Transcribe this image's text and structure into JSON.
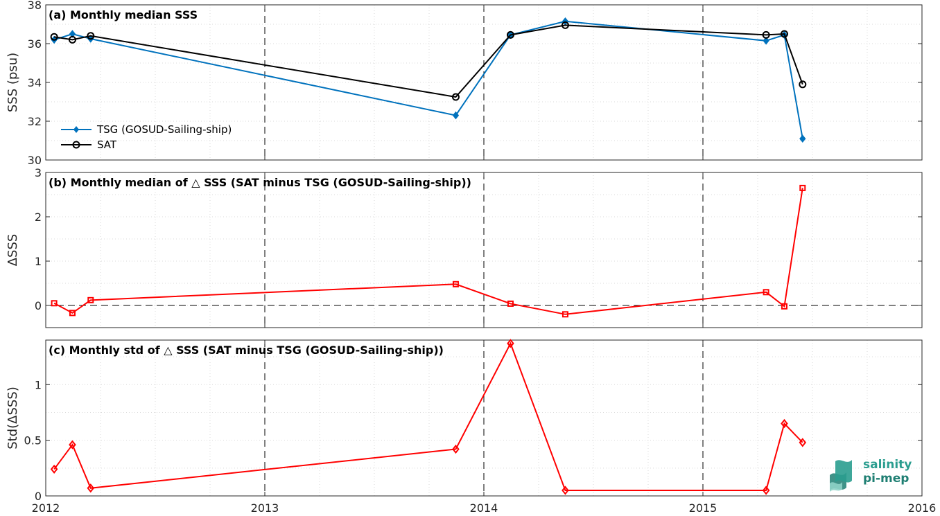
{
  "x_tick_labels": [
    "2012",
    "2013",
    "2014",
    "2015",
    "2016"
  ],
  "logo": {
    "line1": "salinity",
    "line2": "pi-mep",
    "color_text": "#2a9d8f",
    "color_dark": "#1f7f73"
  },
  "chart_data": [
    {
      "id": "a",
      "type": "line",
      "title": "(a) Monthly median SSS",
      "ylabel": "SSS (psu)",
      "xlim": [
        "2012-01-01",
        "2016-01-01"
      ],
      "ylim": [
        30,
        38
      ],
      "yticks": [
        30,
        32,
        34,
        36,
        38
      ],
      "grid": true,
      "legend_placement": "bottom-left",
      "series": [
        {
          "name": "TSG (GOSUD-Sailing-ship)",
          "color": "#0072BD",
          "marker": "filled-diamond",
          "x": [
            "2012-01-15",
            "2012-02-15",
            "2012-03-15",
            "2013-11-15",
            "2014-02-15",
            "2014-05-15",
            "2015-04-15",
            "2015-05-15",
            "2015-06-15"
          ],
          "y": [
            36.2,
            36.5,
            36.25,
            32.3,
            36.45,
            37.15,
            36.15,
            36.45,
            31.1
          ]
        },
        {
          "name": "SAT",
          "color": "#000000",
          "marker": "open-circle",
          "x": [
            "2012-01-15",
            "2012-02-15",
            "2012-03-15",
            "2013-11-15",
            "2014-02-15",
            "2014-05-15",
            "2015-04-15",
            "2015-05-15",
            "2015-06-15"
          ],
          "y": [
            36.35,
            36.2,
            36.4,
            33.25,
            36.45,
            36.95,
            36.45,
            36.5,
            33.9
          ]
        }
      ]
    },
    {
      "id": "b",
      "type": "line",
      "title": "(b) Monthly median of △ SSS (SAT minus TSG (GOSUD-Sailing-ship))",
      "ylabel": "ΔSSS",
      "xlim": [
        "2012-01-01",
        "2016-01-01"
      ],
      "ylim": [
        -0.5,
        3
      ],
      "yticks": [
        0,
        1,
        2,
        3
      ],
      "grid": true,
      "zero_line": true,
      "series": [
        {
          "color": "#FF0000",
          "marker": "open-square",
          "x": [
            "2012-01-15",
            "2012-02-15",
            "2012-03-15",
            "2013-11-15",
            "2014-02-15",
            "2014-05-15",
            "2015-04-15",
            "2015-05-15",
            "2015-06-15"
          ],
          "y": [
            0.05,
            -0.17,
            0.12,
            0.48,
            0.04,
            -0.2,
            0.3,
            -0.02,
            2.65
          ]
        }
      ]
    },
    {
      "id": "c",
      "type": "line",
      "title": "(c) Monthly std of △ SSS (SAT minus TSG (GOSUD-Sailing-ship))",
      "ylabel": "Std(ΔSSS)",
      "xlim": [
        "2012-01-01",
        "2016-01-01"
      ],
      "ylim": [
        0,
        1.4
      ],
      "yticks": [
        0,
        0.5,
        1
      ],
      "ytick_labels": [
        "0",
        "0.5",
        "1"
      ],
      "grid": true,
      "series": [
        {
          "color": "#FF0000",
          "marker": "open-diamond",
          "x": [
            "2012-01-15",
            "2012-02-15",
            "2012-03-15",
            "2013-11-15",
            "2014-02-15",
            "2014-05-15",
            "2015-04-15",
            "2015-05-15",
            "2015-06-15"
          ],
          "y": [
            0.24,
            0.46,
            0.07,
            0.42,
            1.37,
            0.05,
            0.05,
            0.65,
            0.48
          ]
        }
      ]
    }
  ]
}
